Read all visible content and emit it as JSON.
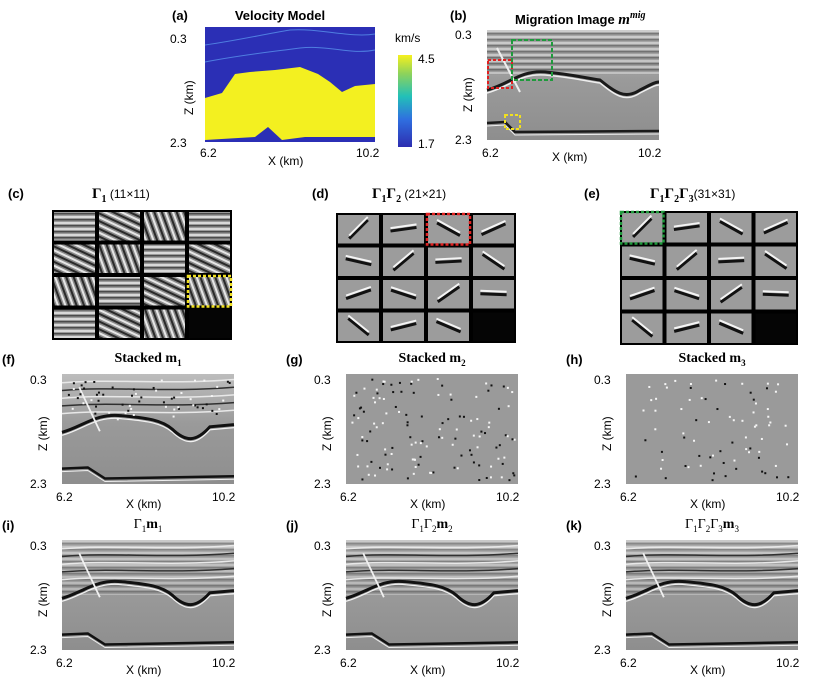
{
  "figure": {
    "panels": {
      "a": {
        "label": "(a)",
        "title": "Velocity Model",
        "colorbar_unit": "km/s",
        "colorbar_max": "4.5",
        "colorbar_min": "1.7",
        "ytop": "0.3",
        "ybottom": "2.3",
        "ylabel": "Z (km)",
        "xleft": "6.2",
        "xright": "10.2",
        "xlabel": "X (km)"
      },
      "b": {
        "label": "(b)",
        "title": "Migration Image ",
        "title_sup": "m",
        "title_sup_exp": "mig",
        "ytop": "0.3",
        "ybottom": "2.3",
        "ylabel": "Z (km)",
        "xleft": "6.2",
        "xright": "10.2",
        "xlabel": "X (km)"
      },
      "c": {
        "label": "(c)",
        "title_sym": "Γ",
        "title_sub": "1",
        "title_size": " (11×11)"
      },
      "d": {
        "label": "(d)",
        "title_sym": "Γ",
        "title_sub1": "1",
        "title_sym2": "Γ",
        "title_sub2": "2",
        "title_size": " (21×21)"
      },
      "e": {
        "label": "(e)",
        "title_sym": "Γ",
        "title_sub1": "1",
        "title_sym2": "Γ",
        "title_sub2": "2",
        "title_sym3": "Γ",
        "title_sub3": "3",
        "title_size": "(31×31)"
      },
      "f": {
        "label": "(f)",
        "title": "Stacked ",
        "title_bold": "m",
        "title_sub": "1",
        "ytop": "0.3",
        "ybottom": "2.3",
        "ylabel": "Z (km)",
        "xleft": "6.2",
        "xright": "10.2",
        "xlabel": "X (km)"
      },
      "g": {
        "label": "(g)",
        "title": "Stacked ",
        "title_bold": "m",
        "title_sub": "2",
        "ytop": "0.3",
        "ybottom": "2.3",
        "ylabel": "Z (km)",
        "xleft": "6.2",
        "xright": "10.2",
        "xlabel": "X (km)"
      },
      "h": {
        "label": "(h)",
        "title": "Stacked ",
        "title_bold": "m",
        "title_sub": "3",
        "ytop": "0.3",
        "ybottom": "2.3",
        "ylabel": "Z (km)",
        "xleft": "6.2",
        "xright": "10.2",
        "xlabel": "X (km)"
      },
      "i": {
        "label": "(i)",
        "t1": "Γ",
        "s1": "1",
        "tb": "m",
        "sb": "1",
        "ytop": "0.3",
        "ybottom": "2.3",
        "ylabel": "Z (km)",
        "xleft": "6.2",
        "xright": "10.2",
        "xlabel": "X (km)"
      },
      "j": {
        "label": "(j)",
        "t1": "Γ",
        "s1": "1",
        "t2": "Γ",
        "s2": "2",
        "tb": "m",
        "sb": "2",
        "ytop": "0.3",
        "ybottom": "2.3",
        "ylabel": "Z (km)",
        "xleft": "6.2",
        "xright": "10.2",
        "xlabel": "X (km)"
      },
      "k": {
        "label": "(k)",
        "t1": "Γ",
        "s1": "1",
        "t2": "Γ",
        "s2": "2",
        "t3": "Γ",
        "s3": "3",
        "tb": "m",
        "sb": "3",
        "ytop": "0.3",
        "ybottom": "2.3",
        "ylabel": "Z (km)",
        "xleft": "6.2",
        "xright": "10.2",
        "xlabel": "X (km)"
      }
    },
    "colors": {
      "velocity_low": "#2a2ab8",
      "velocity_high": "#f2f21a",
      "highlight_red": "#e02020",
      "highlight_green": "#1f9a3c",
      "highlight_yellow": "#f0e020"
    }
  }
}
